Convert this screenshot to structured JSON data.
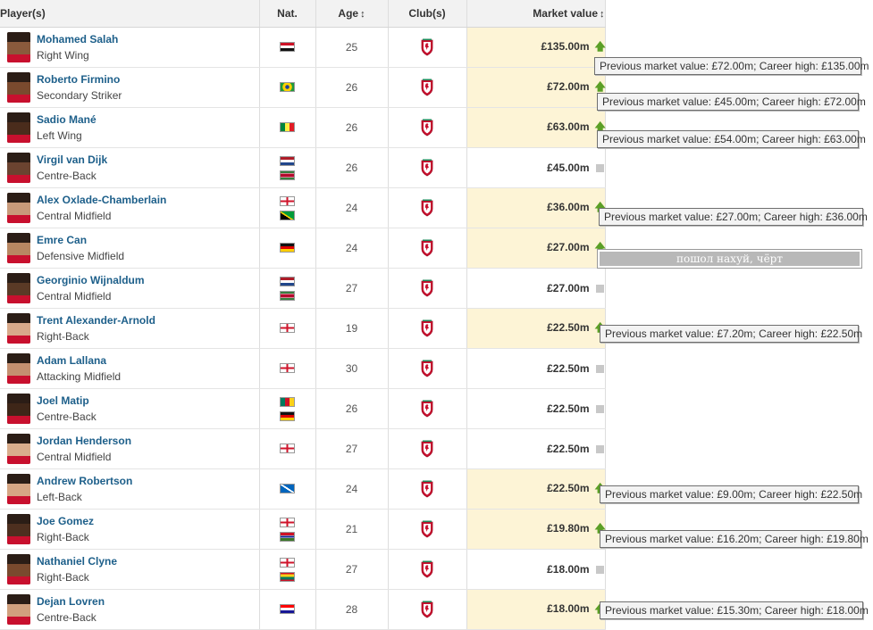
{
  "header": {
    "player": "Player(s)",
    "nat": "Nat.",
    "age": "Age",
    "club": "Club(s)",
    "market_value": "Market value",
    "sort_icon": "↕"
  },
  "colors": {
    "club_red": "#c8102e",
    "trend_up": "#5b9f26",
    "highlight": "#fdf4d6",
    "link": "#1d5f8a"
  },
  "players": [
    {
      "name": "Mohamed Salah",
      "position": "Right Wing",
      "flags": [
        "EG"
      ],
      "age": "25",
      "value": "£135.00m",
      "trend": "up"
    },
    {
      "name": "Roberto Firmino",
      "position": "Secondary Striker",
      "flags": [
        "BR"
      ],
      "age": "26",
      "value": "£72.00m",
      "trend": "up"
    },
    {
      "name": "Sadio Mané",
      "position": "Left Wing",
      "flags": [
        "SN"
      ],
      "age": "26",
      "value": "£63.00m",
      "trend": "up"
    },
    {
      "name": "Virgil van Dijk",
      "position": "Centre-Back",
      "flags": [
        "NL",
        "SR"
      ],
      "age": "26",
      "value": "£45.00m",
      "trend": "none"
    },
    {
      "name": "Alex Oxlade-Chamberlain",
      "position": "Central Midfield",
      "flags": [
        "EN",
        "JM"
      ],
      "age": "24",
      "value": "£36.00m",
      "trend": "up"
    },
    {
      "name": "Emre Can",
      "position": "Defensive Midfield",
      "flags": [
        "DE"
      ],
      "age": "24",
      "value": "£27.00m",
      "trend": "up"
    },
    {
      "name": "Georginio Wijnaldum",
      "position": "Central Midfield",
      "flags": [
        "NL",
        "SR"
      ],
      "age": "27",
      "value": "£27.00m",
      "trend": "none"
    },
    {
      "name": "Trent Alexander-Arnold",
      "position": "Right-Back",
      "flags": [
        "EN"
      ],
      "age": "19",
      "value": "£22.50m",
      "trend": "up"
    },
    {
      "name": "Adam Lallana",
      "position": "Attacking Midfield",
      "flags": [
        "EN"
      ],
      "age": "30",
      "value": "£22.50m",
      "trend": "none"
    },
    {
      "name": "Joel Matip",
      "position": "Centre-Back",
      "flags": [
        "CM",
        "DE"
      ],
      "age": "26",
      "value": "£22.50m",
      "trend": "none"
    },
    {
      "name": "Jordan Henderson",
      "position": "Central Midfield",
      "flags": [
        "EN"
      ],
      "age": "27",
      "value": "£22.50m",
      "trend": "none"
    },
    {
      "name": "Andrew Robertson",
      "position": "Left-Back",
      "flags": [
        "SC"
      ],
      "age": "24",
      "value": "£22.50m",
      "trend": "up"
    },
    {
      "name": "Joe Gomez",
      "position": "Right-Back",
      "flags": [
        "EN",
        "GM"
      ],
      "age": "21",
      "value": "£19.80m",
      "trend": "up"
    },
    {
      "name": "Nathaniel Clyne",
      "position": "Right-Back",
      "flags": [
        "EN",
        "GD"
      ],
      "age": "27",
      "value": "£18.00m",
      "trend": "none"
    },
    {
      "name": "Dejan Lovren",
      "position": "Centre-Back",
      "flags": [
        "HR"
      ],
      "age": "28",
      "value": "£18.00m",
      "trend": "up"
    }
  ],
  "tooltips": [
    {
      "text": "Previous market value: £72.00m; Career high: £135.00m"
    },
    {
      "text": "Previous market value: £45.00m; Career high: £72.00m"
    },
    {
      "text": "Previous market value: £54.00m; Career high: £63.00m"
    },
    {
      "text": "Previous market value: £27.00m; Career high: £36.00m"
    },
    {
      "text": "пошол нахуй, чёрт"
    },
    {
      "text": "Previous market value: £7.20m; Career high: £22.50m"
    },
    {
      "text": "Previous market value: £9.00m; Career high: £22.50m"
    },
    {
      "text": "Previous market value: £16.20m; Career high: £19.80m"
    },
    {
      "text": "Previous market value: £15.30m; Career high: £18.00m"
    }
  ]
}
